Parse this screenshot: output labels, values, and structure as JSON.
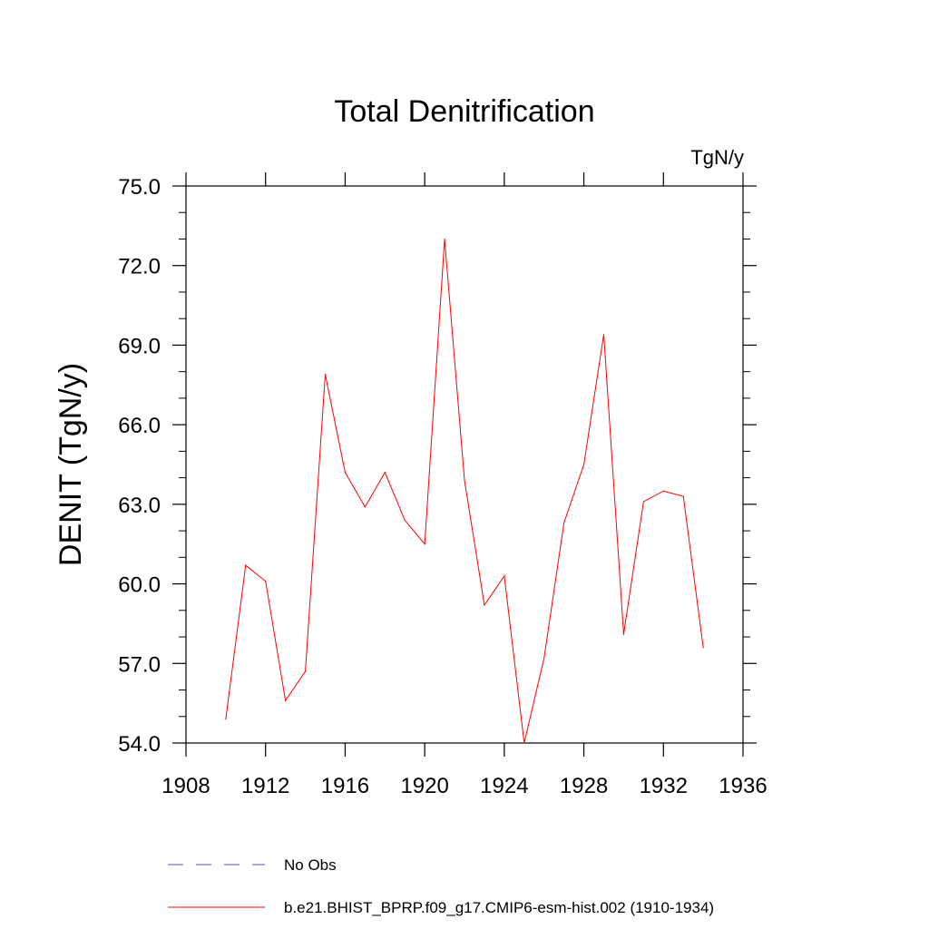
{
  "chart_data": {
    "type": "line",
    "title": "Total Denitrification",
    "units": "TgN/y",
    "ylabel": "DENIT  (TgN/y)",
    "xlabel": "",
    "xlim": [
      1908,
      1936
    ],
    "ylim": [
      54.0,
      75.0
    ],
    "x_ticks": [
      "1908",
      "1912",
      "1916",
      "1920",
      "1924",
      "1928",
      "1932",
      "1936"
    ],
    "y_ticks": [
      "54.0",
      "57.0",
      "60.0",
      "63.0",
      "66.0",
      "69.0",
      "72.0",
      "75.0"
    ],
    "grid": false,
    "legend_position": "bottom",
    "series": [
      {
        "name": "No Obs",
        "color": "#5a4fc8",
        "dash": "dashed",
        "x": [],
        "values": []
      },
      {
        "name": "b.e21.BHIST_BPRP.f09_g17.CMIP6-esm-hist.002 (1910-1934)",
        "color": "#ff0000",
        "dash": "solid",
        "x": [
          1910,
          1911,
          1912,
          1913,
          1914,
          1915,
          1916,
          1917,
          1918,
          1919,
          1920,
          1921,
          1922,
          1923,
          1924,
          1925,
          1926,
          1927,
          1928,
          1929,
          1930,
          1931,
          1932,
          1933,
          1934
        ],
        "values": [
          54.9,
          60.7,
          60.1,
          55.6,
          56.7,
          67.9,
          64.2,
          62.9,
          64.2,
          62.4,
          61.5,
          73.0,
          63.9,
          59.2,
          60.3,
          54.0,
          57.2,
          62.3,
          64.5,
          69.4,
          58.1,
          63.1,
          63.5,
          63.3,
          57.6
        ]
      }
    ]
  }
}
